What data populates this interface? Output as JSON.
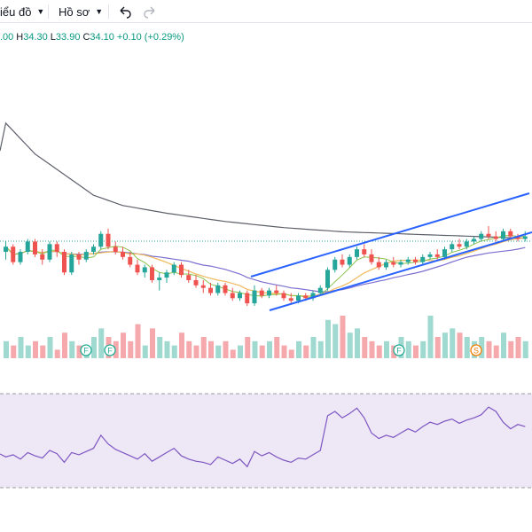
{
  "toolbar": {
    "chart_menu_label": "iểu đồ",
    "profile_menu_label": "Hồ sơ"
  },
  "legend": {
    "open_value": ".00",
    "high_label": "H",
    "high_value": "34.30",
    "low_label": "L",
    "low_value": "33.90",
    "close_label": "C",
    "close_value": "34.10",
    "change": "+0.10 (+0.29%)"
  },
  "colors": {
    "up": "#26a69a",
    "down": "#ef5350",
    "volume_up": "#9fd9cf",
    "volume_down": "#f5a9ad",
    "ma_long": "#5d606b",
    "ma_mid": "#7b6fd0",
    "ma_short": "#f0b95a",
    "ma_fast": "#8bc34a",
    "channel": "#2962ff",
    "rsi_line": "#7e57c2",
    "rsi_band": "#ede7f6",
    "event_marker": "#22ab94"
  },
  "chart_data": {
    "type": "candlestick",
    "price_ohlc": [
      [
        33.5,
        33.9,
        33.2,
        33.7
      ],
      [
        33.7,
        33.8,
        33.0,
        33.1
      ],
      [
        33.1,
        33.6,
        33.0,
        33.5
      ],
      [
        33.5,
        34.0,
        33.4,
        33.9
      ],
      [
        33.9,
        34.0,
        33.3,
        33.4
      ],
      [
        33.4,
        33.6,
        33.0,
        33.2
      ],
      [
        33.2,
        33.9,
        33.1,
        33.8
      ],
      [
        33.8,
        33.9,
        33.3,
        33.5
      ],
      [
        33.5,
        33.6,
        32.6,
        32.7
      ],
      [
        32.7,
        33.5,
        32.6,
        33.4
      ],
      [
        33.4,
        33.5,
        33.0,
        33.2
      ],
      [
        33.2,
        33.6,
        33.1,
        33.5
      ],
      [
        33.5,
        33.8,
        33.4,
        33.7
      ],
      [
        33.7,
        34.3,
        33.6,
        34.2
      ],
      [
        34.2,
        34.4,
        33.6,
        33.7
      ],
      [
        33.7,
        33.9,
        33.4,
        33.5
      ],
      [
        33.5,
        33.7,
        33.2,
        33.3
      ],
      [
        33.3,
        33.5,
        32.9,
        33.0
      ],
      [
        33.0,
        33.2,
        32.6,
        32.7
      ],
      [
        32.7,
        33.0,
        32.5,
        32.9
      ],
      [
        32.9,
        33.0,
        32.3,
        32.4
      ],
      [
        32.4,
        32.7,
        32.0,
        32.5
      ],
      [
        32.5,
        32.8,
        32.3,
        32.7
      ],
      [
        32.7,
        33.1,
        32.6,
        33.0
      ],
      [
        33.0,
        33.1,
        32.5,
        32.6
      ],
      [
        32.6,
        32.8,
        32.3,
        32.4
      ],
      [
        32.4,
        32.6,
        32.1,
        32.2
      ],
      [
        32.2,
        32.4,
        31.9,
        32.1
      ],
      [
        32.1,
        32.3,
        31.8,
        31.9
      ],
      [
        31.9,
        32.3,
        31.8,
        32.2
      ],
      [
        32.2,
        32.3,
        31.8,
        31.9
      ],
      [
        31.9,
        32.1,
        31.6,
        31.7
      ],
      [
        31.7,
        32.0,
        31.6,
        31.9
      ],
      [
        31.9,
        32.0,
        31.4,
        31.5
      ],
      [
        31.5,
        32.2,
        31.4,
        32.0
      ],
      [
        32.0,
        32.1,
        31.7,
        31.8
      ],
      [
        31.8,
        32.1,
        31.7,
        32.0
      ],
      [
        32.0,
        32.2,
        31.8,
        31.9
      ],
      [
        31.9,
        32.0,
        31.6,
        31.7
      ],
      [
        31.7,
        31.9,
        31.5,
        31.6
      ],
      [
        31.6,
        31.9,
        31.5,
        31.8
      ],
      [
        31.8,
        31.9,
        31.6,
        31.7
      ],
      [
        31.7,
        32.0,
        31.6,
        31.9
      ],
      [
        31.9,
        32.2,
        31.8,
        32.1
      ],
      [
        32.1,
        32.9,
        32.0,
        32.8
      ],
      [
        32.8,
        33.3,
        32.7,
        33.2
      ],
      [
        33.2,
        33.4,
        32.9,
        33.0
      ],
      [
        33.0,
        33.4,
        32.9,
        33.3
      ],
      [
        33.3,
        33.7,
        33.2,
        33.6
      ],
      [
        33.6,
        33.8,
        33.3,
        33.4
      ],
      [
        33.4,
        33.6,
        33.0,
        33.1
      ],
      [
        33.1,
        33.3,
        32.8,
        32.9
      ],
      [
        32.9,
        33.2,
        32.8,
        33.1
      ],
      [
        33.1,
        33.3,
        32.9,
        33.0
      ],
      [
        33.0,
        33.2,
        32.9,
        33.1
      ],
      [
        33.1,
        33.3,
        33.0,
        33.2
      ],
      [
        33.2,
        33.3,
        33.0,
        33.1
      ],
      [
        33.1,
        33.4,
        33.0,
        33.3
      ],
      [
        33.3,
        33.5,
        33.2,
        33.4
      ],
      [
        33.4,
        33.6,
        33.2,
        33.3
      ],
      [
        33.3,
        33.7,
        33.2,
        33.6
      ],
      [
        33.6,
        33.9,
        33.5,
        33.8
      ],
      [
        33.8,
        34.0,
        33.6,
        33.7
      ],
      [
        33.7,
        34.0,
        33.6,
        33.9
      ],
      [
        33.9,
        34.1,
        33.8,
        34.0
      ],
      [
        34.0,
        34.3,
        33.9,
        34.2
      ],
      [
        34.2,
        34.5,
        34.0,
        34.1
      ],
      [
        34.1,
        34.3,
        33.9,
        34.0
      ],
      [
        34.0,
        34.4,
        33.9,
        34.3
      ],
      [
        34.3,
        34.4,
        34.0,
        34.1
      ],
      [
        34.1,
        34.2,
        33.9,
        34.0
      ],
      [
        34.0,
        34.3,
        33.9,
        34.1
      ]
    ],
    "volume": [
      4,
      3,
      5,
      3,
      4,
      3,
      5,
      2,
      6,
      4,
      3,
      3,
      5,
      7,
      5,
      4,
      6,
      4,
      8,
      3,
      7,
      5,
      4,
      3,
      6,
      4,
      3,
      5,
      4,
      3,
      4,
      2,
      3,
      5,
      4,
      3,
      4,
      5,
      3,
      2,
      4,
      3,
      5,
      4,
      9,
      8,
      10,
      6,
      7,
      5,
      4,
      3,
      4,
      3,
      5,
      4,
      3,
      4,
      10,
      5,
      6,
      7,
      6,
      5,
      4,
      5,
      4,
      3,
      6,
      4,
      5,
      4
    ],
    "rsi": [
      40,
      42,
      38,
      44,
      41,
      39,
      46,
      43,
      35,
      44,
      42,
      45,
      48,
      60,
      52,
      47,
      44,
      41,
      38,
      43,
      36,
      40,
      44,
      48,
      41,
      38,
      36,
      35,
      33,
      40,
      37,
      34,
      38,
      31,
      45,
      41,
      44,
      40,
      37,
      35,
      39,
      38,
      42,
      46,
      78,
      82,
      76,
      80,
      85,
      76,
      62,
      57,
      60,
      58,
      62,
      66,
      63,
      68,
      72,
      70,
      73,
      75,
      71,
      74,
      76,
      79,
      86,
      82,
      72,
      66,
      70,
      68
    ],
    "ma_long": [
      38.5,
      38.2,
      37.9,
      37.6,
      37.3,
      37.1,
      36.9,
      36.7,
      36.5,
      36.3,
      36.1,
      35.9,
      35.7,
      35.6,
      35.5,
      35.4,
      35.3,
      35.25,
      35.2,
      35.15,
      35.1,
      35.05,
      35.0,
      34.96,
      34.92,
      34.88,
      34.84,
      34.8,
      34.76,
      34.72,
      34.68,
      34.65,
      34.62,
      34.59,
      34.56,
      34.53,
      34.5,
      34.47,
      34.44,
      34.42,
      34.4,
      34.38,
      34.36,
      34.34,
      34.32,
      34.3,
      34.28,
      34.27,
      34.26,
      34.25,
      34.24,
      34.23,
      34.22,
      34.21,
      34.2,
      34.19,
      34.18,
      34.17,
      34.16,
      34.15,
      34.14,
      34.13,
      34.12,
      34.11,
      34.1,
      34.09,
      34.08,
      34.07,
      34.06,
      34.05,
      34.04,
      34.03
    ],
    "rsi_bands": [
      70,
      30
    ]
  }
}
